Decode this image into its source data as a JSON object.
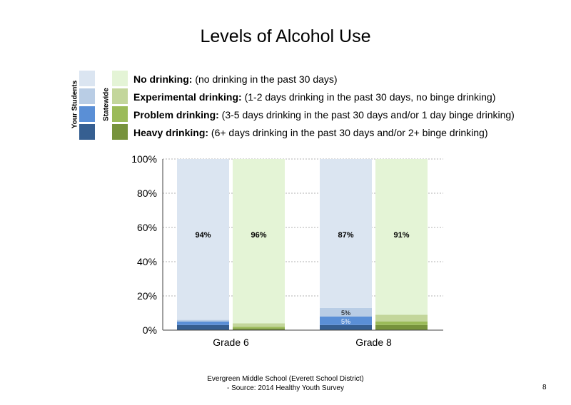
{
  "title": "Levels of Alcohol Use",
  "legend": {
    "group_a": "Your Students",
    "group_b": "Statewide",
    "items": [
      {
        "name": "No drinking:",
        "desc": " (no drinking in the past 30 days)"
      },
      {
        "name": "Experimental drinking:",
        "desc": " (1-2 days drinking in the past 30 days, no binge drinking)"
      },
      {
        "name": "Problem drinking:",
        "desc": " (3-5 days drinking in the past 30 days and/or 1 day binge drinking)"
      },
      {
        "name": "Heavy drinking:",
        "desc": " (6+ days drinking in the past 30 days and/or 2+ binge drinking)"
      }
    ]
  },
  "colors": {
    "students": [
      "#dbe5f1",
      "#b9cde5",
      "#5a8fd6",
      "#365f91"
    ],
    "statewide": [
      "#e4f4d6",
      "#c3d69b",
      "#9bbb59",
      "#77933c"
    ]
  },
  "chart_data": {
    "type": "bar",
    "stacked": true,
    "categories": [
      "Grade 6",
      "Grade 8"
    ],
    "ylim": [
      0,
      100
    ],
    "yticks": [
      "0%",
      "20%",
      "40%",
      "60%",
      "80%",
      "100%"
    ],
    "grid": true,
    "series": [
      {
        "name": "Your Students",
        "groups": [
          {
            "values": [
              94,
              1,
              2,
              3
            ],
            "labels": [
              "94%",
              "",
              "",
              ""
            ]
          },
          {
            "values": [
              87,
              5,
              5,
              3
            ],
            "labels": [
              "87%",
              "5%",
              "5%",
              ""
            ]
          }
        ]
      },
      {
        "name": "Statewide",
        "groups": [
          {
            "values": [
              96,
              2,
              1,
              1
            ],
            "labels": [
              "96%",
              "",
              "",
              ""
            ]
          },
          {
            "values": [
              91,
              4,
              2,
              3
            ],
            "labels": [
              "91%",
              "",
              "",
              ""
            ]
          }
        ]
      }
    ]
  },
  "footer": {
    "line1": "Evergreen Middle School (Everett School District)",
    "line2": "- Source: 2014 Healthy  Youth Survey"
  },
  "page_number": "8"
}
